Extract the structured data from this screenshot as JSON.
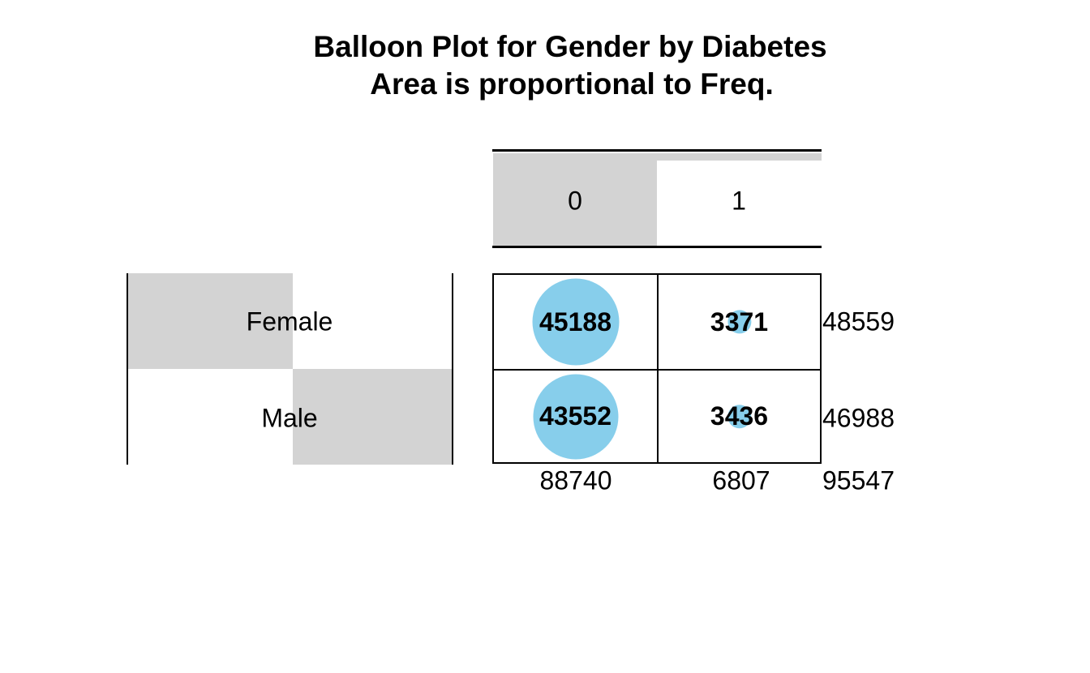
{
  "chart_data": {
    "type": "table",
    "subtype": "balloon-plot",
    "title": "Balloon Plot for Gender by Diabetes",
    "subtitle": "Area is proportional to Freq.",
    "row_variable": "Gender",
    "column_variable": "Diabetes",
    "columns": [
      "0",
      "1"
    ],
    "rows": [
      "Female",
      "Male"
    ],
    "cells": [
      [
        45188,
        3371
      ],
      [
        43552,
        3436
      ]
    ],
    "row_sums": [
      48559,
      46988
    ],
    "col_sums": [
      88740,
      6807
    ],
    "total": 95547,
    "balloon_color": "#87CEEB",
    "margin_bar_color": "#D3D3D3",
    "line_color": "#000000",
    "show_margins": true,
    "legend_position": "none",
    "grid": false
  }
}
